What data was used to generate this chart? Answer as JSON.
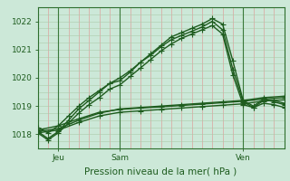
{
  "title": "Pression niveau de la mer( hPa )",
  "ylim": [
    1017.5,
    1022.5
  ],
  "yticks": [
    1018,
    1019,
    1020,
    1021,
    1022
  ],
  "xlim": [
    0,
    48
  ],
  "xtick_positions": [
    4,
    16,
    40
  ],
  "xtick_labels": [
    "Jeu",
    "Sam",
    "Ven"
  ],
  "vline_positions": [
    4,
    16,
    40
  ],
  "bg_color": "#cce8d8",
  "plot_bg_color": "#cce8d8",
  "line_color": "#1e5c1e",
  "grid_color_v": "#e09090",
  "grid_color_h": "#aacaaa",
  "line_width": 1.0,
  "marker": "+",
  "marker_size": 4,
  "series": [
    {
      "x": [
        0,
        2,
        4,
        6,
        8,
        10,
        12,
        14,
        16,
        18,
        20,
        22,
        24,
        26,
        28,
        30,
        32,
        34,
        36,
        38,
        40,
        42,
        44,
        46,
        48
      ],
      "y": [
        1018.1,
        1017.85,
        1018.1,
        1018.5,
        1018.9,
        1019.2,
        1019.5,
        1019.8,
        1019.9,
        1020.2,
        1020.55,
        1020.85,
        1021.15,
        1021.45,
        1021.6,
        1021.75,
        1021.9,
        1022.1,
        1021.9,
        1020.6,
        1019.2,
        1019.0,
        1019.25,
        1019.15,
        1019.05
      ]
    },
    {
      "x": [
        0,
        2,
        4,
        6,
        8,
        10,
        12,
        14,
        16,
        18,
        20,
        22,
        24,
        26,
        28,
        30,
        32,
        34,
        36,
        38,
        40,
        42,
        44,
        46,
        48
      ],
      "y": [
        1018.25,
        1018.05,
        1018.3,
        1018.65,
        1019.0,
        1019.3,
        1019.55,
        1019.8,
        1020.0,
        1020.25,
        1020.55,
        1020.8,
        1021.1,
        1021.35,
        1021.5,
        1021.65,
        1021.8,
        1022.0,
        1021.7,
        1020.3,
        1019.15,
        1018.95,
        1019.2,
        1019.2,
        1019.1
      ]
    },
    {
      "x": [
        0,
        2,
        4,
        6,
        8,
        10,
        12,
        14,
        16,
        18,
        20,
        22,
        24,
        26,
        28,
        30,
        32,
        34,
        36,
        38,
        40,
        42,
        44,
        46,
        48
      ],
      "y": [
        1018.05,
        1017.8,
        1018.05,
        1018.4,
        1018.75,
        1019.05,
        1019.3,
        1019.6,
        1019.75,
        1020.05,
        1020.35,
        1020.65,
        1020.95,
        1021.2,
        1021.4,
        1021.55,
        1021.7,
        1021.85,
        1021.55,
        1020.1,
        1019.05,
        1018.95,
        1019.1,
        1019.05,
        1018.95
      ]
    },
    {
      "x": [
        0,
        4,
        8,
        12,
        16,
        20,
        24,
        28,
        32,
        36,
        40,
        44,
        48
      ],
      "y": [
        1018.1,
        1018.2,
        1018.5,
        1018.75,
        1018.9,
        1018.95,
        1019.0,
        1019.05,
        1019.1,
        1019.15,
        1019.2,
        1019.3,
        1019.35
      ]
    },
    {
      "x": [
        0,
        4,
        8,
        12,
        16,
        20,
        24,
        28,
        32,
        36,
        40,
        44,
        48
      ],
      "y": [
        1018.15,
        1018.3,
        1018.55,
        1018.78,
        1018.88,
        1018.93,
        1018.97,
        1019.02,
        1019.07,
        1019.12,
        1019.17,
        1019.25,
        1019.3
      ]
    },
    {
      "x": [
        0,
        4,
        8,
        12,
        16,
        20,
        24,
        28,
        32,
        36,
        40,
        44,
        48
      ],
      "y": [
        1018.05,
        1018.15,
        1018.42,
        1018.65,
        1018.78,
        1018.83,
        1018.88,
        1018.93,
        1018.98,
        1019.03,
        1019.08,
        1019.18,
        1019.22
      ]
    }
  ]
}
